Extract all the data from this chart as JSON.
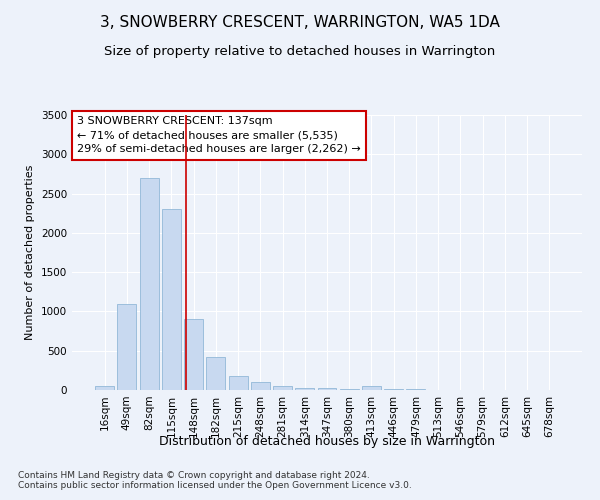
{
  "title": "3, SNOWBERRY CRESCENT, WARRINGTON, WA5 1DA",
  "subtitle": "Size of property relative to detached houses in Warrington",
  "xlabel": "Distribution of detached houses by size in Warrington",
  "ylabel": "Number of detached properties",
  "categories": [
    "16sqm",
    "49sqm",
    "82sqm",
    "115sqm",
    "148sqm",
    "182sqm",
    "215sqm",
    "248sqm",
    "281sqm",
    "314sqm",
    "347sqm",
    "380sqm",
    "413sqm",
    "446sqm",
    "479sqm",
    "513sqm",
    "546sqm",
    "579sqm",
    "612sqm",
    "645sqm",
    "678sqm"
  ],
  "values": [
    50,
    1100,
    2700,
    2300,
    900,
    420,
    180,
    100,
    55,
    30,
    22,
    10,
    50,
    15,
    8,
    5,
    4,
    3,
    2,
    2,
    2
  ],
  "bar_color": "#c8d9f0",
  "bar_edge_color": "#92b8d8",
  "background_color": "#edf2fa",
  "grid_color": "#ffffff",
  "vline_color": "#cc0000",
  "vline_x": 3.65,
  "annotation_text": "3 SNOWBERRY CRESCENT: 137sqm\n← 71% of detached houses are smaller (5,535)\n29% of semi-detached houses are larger (2,262) →",
  "annotation_box_facecolor": "#ffffff",
  "annotation_box_edgecolor": "#cc0000",
  "ylim": [
    0,
    3500
  ],
  "yticks": [
    0,
    500,
    1000,
    1500,
    2000,
    2500,
    3000,
    3500
  ],
  "footnote": "Contains HM Land Registry data © Crown copyright and database right 2024.\nContains public sector information licensed under the Open Government Licence v3.0.",
  "title_fontsize": 11,
  "subtitle_fontsize": 9.5,
  "xlabel_fontsize": 9,
  "ylabel_fontsize": 8,
  "tick_fontsize": 7.5,
  "annotation_fontsize": 8,
  "footnote_fontsize": 6.5
}
